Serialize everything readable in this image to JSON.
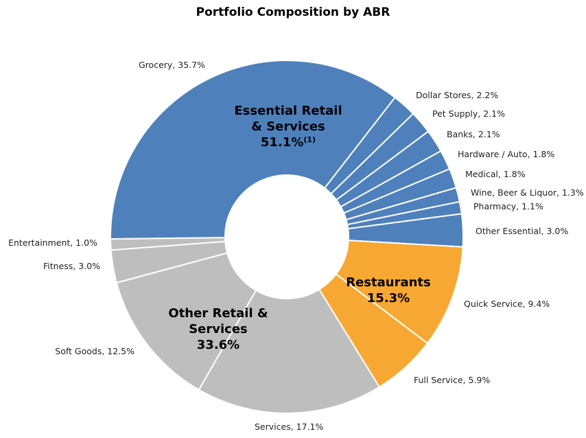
{
  "chart_data": {
    "type": "pie",
    "variant": "donut",
    "title": "Portfolio Composition by ABR",
    "colors": {
      "essential": "#4E80BC",
      "restaurants": "#F7A833",
      "other": "#BEBEBE",
      "divider": "#ffffff"
    },
    "slices": [
      {
        "label": "Grocery",
        "value": 35.7,
        "display": "35.7%",
        "group": "essential"
      },
      {
        "label": "Dollar Stores",
        "value": 2.2,
        "display": "2.2%",
        "group": "essential"
      },
      {
        "label": "Pet Supply",
        "value": 2.1,
        "display": "2.1%",
        "group": "essential"
      },
      {
        "label": "Banks",
        "value": 2.1,
        "display": "2.1%",
        "group": "essential"
      },
      {
        "label": "Hardware / Auto",
        "value": 1.8,
        "display": "1.8%",
        "group": "essential"
      },
      {
        "label": "Medical",
        "value": 1.8,
        "display": "1.8%",
        "group": "essential"
      },
      {
        "label": "Wine, Beer & Liquor",
        "value": 1.3,
        "display": "1.3%",
        "group": "essential"
      },
      {
        "label": "Pharmacy",
        "value": 1.1,
        "display": "1.1%",
        "group": "essential"
      },
      {
        "label": "Other Essential",
        "value": 3.0,
        "display": "3.0%",
        "group": "essential"
      },
      {
        "label": "Quick Service",
        "value": 9.4,
        "display": "9.4%",
        "group": "restaurants"
      },
      {
        "label": "Full Service",
        "value": 5.9,
        "display": "5.9%",
        "group": "restaurants"
      },
      {
        "label": "Services",
        "value": 17.1,
        "display": "17.1%",
        "group": "other"
      },
      {
        "label": "Soft Goods",
        "value": 12.5,
        "display": "12.5%",
        "group": "other"
      },
      {
        "label": "Fitness",
        "value": 3.0,
        "display": "3.0%",
        "group": "other"
      },
      {
        "label": "Entertainment",
        "value": 1.0,
        "display": "1.0%",
        "group": "other"
      }
    ],
    "groups": [
      {
        "key": "essential",
        "lines": [
          "Essential Retail",
          "& Services"
        ],
        "value": "51.1%",
        "footnote": "(1)"
      },
      {
        "key": "restaurants",
        "lines": [
          "Restaurants"
        ],
        "value": "15.3%"
      },
      {
        "key": "other",
        "lines": [
          "Other Retail &",
          "Services"
        ],
        "value": "33.6%"
      }
    ]
  }
}
